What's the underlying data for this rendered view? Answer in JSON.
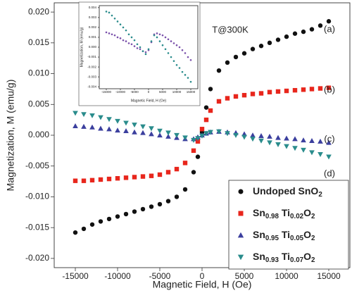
{
  "chart_data": [
    {
      "type": "scatter",
      "x_label": "Magnetic Field, H (Oe)",
      "y_label": "Magnetization, M (emu/g)",
      "xlim": [
        -17500,
        17500
      ],
      "ylim": [
        -0.0215,
        0.0215
      ],
      "xticks": [
        -15000,
        -10000,
        -5000,
        0,
        5000,
        10000,
        15000
      ],
      "yticks": [
        {
          "value": 0.02,
          "label": "0.020"
        },
        0.015,
        {
          "value": 0.01,
          "label": "0.010"
        },
        0.005,
        {
          "value": 0,
          "label": "0.000"
        },
        -0.005,
        {
          "value": -0.01,
          "label": "-0.010"
        },
        -0.015,
        {
          "value": -0.02,
          "label": "-0.020"
        }
      ],
      "legend": "lower right",
      "annotations": [
        "T@300K",
        "(a)",
        "(b)",
        "(c)",
        "(d)"
      ],
      "x": [
        -15000,
        -14000,
        -13000,
        -12000,
        -11000,
        -10000,
        -9000,
        -8000,
        -7000,
        -6000,
        -5000,
        -4000,
        -3000,
        -2000,
        -1000,
        -500,
        0,
        500,
        1000,
        2000,
        3000,
        4000,
        5000,
        6000,
        7000,
        8000,
        9000,
        10000,
        11000,
        12000,
        13000,
        14000,
        15000
      ],
      "series": [
        {
          "name": "Undoped SnO2",
          "color": "#111111",
          "marker": "circle",
          "values": [
            -0.0158,
            -0.0152,
            -0.0145,
            -0.014,
            -0.0136,
            -0.0132,
            -0.0128,
            -0.0124,
            -0.012,
            -0.0116,
            -0.0112,
            -0.0107,
            -0.01,
            -0.0088,
            -0.006,
            -0.0035,
            0.0005,
            0.0045,
            0.0075,
            0.0105,
            0.0118,
            0.0127,
            0.0133,
            0.014,
            0.0145,
            0.015,
            0.0155,
            0.016,
            0.0165,
            0.0168,
            0.0172,
            0.0178,
            0.0185
          ]
        },
        {
          "name": "Sn0.98 Ti0.02O2",
          "color": "#e8261c",
          "marker": "square",
          "values": [
            -0.0074,
            -0.0074,
            -0.0073,
            -0.0072,
            -0.0071,
            -0.007,
            -0.0069,
            -0.0068,
            -0.0067,
            -0.0066,
            -0.0064,
            -0.006,
            -0.0055,
            -0.0045,
            -0.0025,
            -0.001,
            0.001,
            0.0025,
            0.004,
            0.0055,
            0.006,
            0.0063,
            0.0065,
            0.0067,
            0.0068,
            0.007,
            0.0071,
            0.0072,
            0.0073,
            0.0074,
            0.0075,
            0.0076,
            0.0077
          ]
        },
        {
          "name": "Sn0.95 Ti0.05O2",
          "color": "#3b3f9e",
          "marker": "triangle-up",
          "values": [
            0.0015,
            0.0014,
            0.0013,
            0.0011,
            0.001,
            0.0008,
            0.0007,
            0.0005,
            0.0004,
            0.0002,
            0,
            -0.0002,
            -0.0004,
            -0.0006,
            -0.0006,
            -0.0003,
            0,
            0.0003,
            0.0005,
            0.0006,
            0.0005,
            0.0004,
            0.0002,
            0,
            -0.0001,
            -0.0002,
            -0.0004,
            -0.0005,
            -0.0006,
            -0.0008,
            -0.0009,
            -0.001,
            -0.0012
          ]
        },
        {
          "name": "Sn0.93 Ti0.07O2",
          "color": "#2a8c8c",
          "marker": "triangle-down",
          "values": [
            0.0036,
            0.0034,
            0.0032,
            0.0029,
            0.0026,
            0.0023,
            0.002,
            0.0017,
            0.0014,
            0.0011,
            0.0007,
            0.0004,
            0,
            -0.0004,
            -0.0008,
            -0.0005,
            -0.0001,
            0.0003,
            0.0005,
            0.0006,
            0.0003,
            0,
            -0.0003,
            -0.0006,
            -0.0009,
            -0.0012,
            -0.0015,
            -0.0018,
            -0.0021,
            -0.0024,
            -0.0028,
            -0.0031,
            -0.0035
          ]
        }
      ]
    },
    {
      "type": "scatter",
      "x_label": "Magnetic Field, H (Oe)",
      "y_label": "Magnetization, M (emu/g)",
      "xlim": [
        -17500,
        17500
      ],
      "ylim": [
        -0.0042,
        0.0042
      ],
      "xticks": [
        -15000,
        -10000,
        -5000,
        0,
        5000,
        10000,
        15000
      ],
      "yticks": [
        0.004,
        0.003,
        0.002,
        0.001,
        {
          "value": 0,
          "label": "0.000"
        },
        -0.001,
        -0.002,
        -0.003,
        -0.004
      ],
      "x": [
        -15000,
        -14000,
        -13000,
        -12000,
        -11000,
        -10000,
        -9000,
        -8000,
        -7000,
        -6000,
        -5000,
        -4000,
        -3000,
        -2000,
        -1000,
        0,
        1000,
        2000,
        3000,
        4000,
        5000,
        6000,
        7000,
        8000,
        9000,
        10000,
        11000,
        12000,
        13000,
        14000,
        15000
      ],
      "series": [
        {
          "color": "#7b52ab",
          "marker": "circle",
          "values": [
            0.0015,
            0.0014,
            0.0013,
            0.0012,
            0.001,
            0.0009,
            0.0007,
            0.0006,
            0.0004,
            0.0003,
            0.0001,
            -0.0001,
            -0.0002,
            -0.0004,
            -0.0005,
            -0.0003,
            0.0005,
            0.0013,
            0.0014,
            0.0013,
            0.0012,
            0.001,
            0.0008,
            0.0006,
            0.0004,
            0.0002,
            0,
            -0.0003,
            -0.0006,
            -0.001,
            -0.0013
          ]
        },
        {
          "color": "#2a8c8c",
          "marker": "circle",
          "values": [
            0.0036,
            0.0035,
            0.0032,
            0.0029,
            0.0026,
            0.0023,
            0.002,
            0.0017,
            0.0013,
            0.001,
            0.0007,
            0.0003,
            0,
            -0.0004,
            -0.0007,
            -0.0002,
            0.0006,
            0.0012,
            0.001,
            0.0006,
            0.0002,
            -0.0002,
            -0.0006,
            -0.001,
            -0.0014,
            -0.0018,
            -0.0021,
            -0.0025,
            -0.0028,
            -0.0031,
            -0.0035
          ]
        }
      ]
    }
  ]
}
